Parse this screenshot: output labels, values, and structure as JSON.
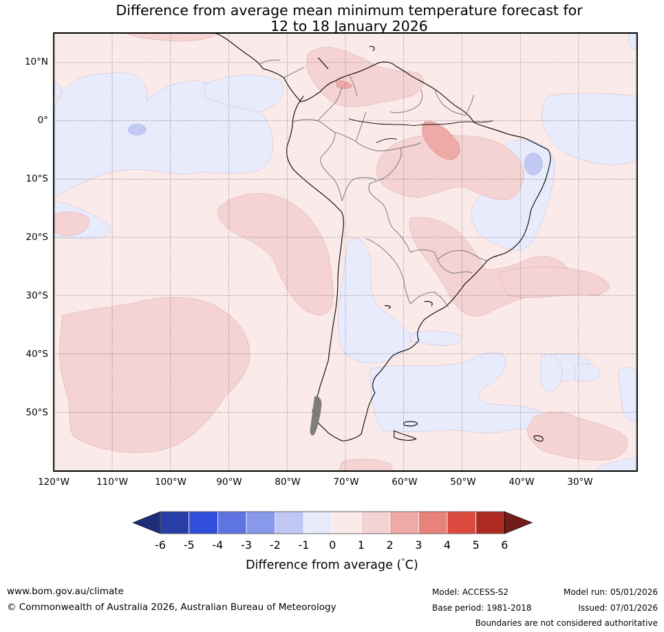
{
  "title": {
    "line1": "Difference from average mean minimum temperature forecast for",
    "line2": "12 to 18 January 2026"
  },
  "lat_labels": [
    "10°N",
    "0°",
    "10°S",
    "20°S",
    "30°S",
    "40°S",
    "50°S"
  ],
  "lon_labels": [
    "120°W",
    "110°W",
    "100°W",
    "90°W",
    "80°W",
    "70°W",
    "60°W",
    "50°W",
    "40°W",
    "30°W"
  ],
  "colorbar": {
    "ticks": [
      "-6",
      "-5",
      "-4",
      "-3",
      "-2",
      "-1",
      "0",
      "1",
      "2",
      "3",
      "4",
      "5",
      "6"
    ],
    "colors": [
      "#283ea6",
      "#2f4fdc",
      "#5d74e2",
      "#8898ea",
      "#c1c8f3",
      "#e8ebfb",
      "#fbeaea",
      "#f5d3d3",
      "#edaaa7",
      "#e8837c",
      "#db4a3e",
      "#ac2a22"
    ],
    "under_color": "#1e2d7a",
    "over_color": "#731c19",
    "label": "Difference from average ( °C)",
    "label_part1": "Difference from average (",
    "label_deg": "°",
    "label_part2": "C)"
  },
  "footer": {
    "url": "www.bom.gov.au/climate",
    "copyright": "© Commonwealth of Australia 2026, Australian Bureau of Meteorology",
    "model": "Model: ACCESS-S2",
    "base_period": "Base period: 1981-2018",
    "model_run": "Model run: 05/01/2026",
    "issued": "Issued: 07/01/2026",
    "disclaimer": "Boundaries are not considered authoritative"
  }
}
